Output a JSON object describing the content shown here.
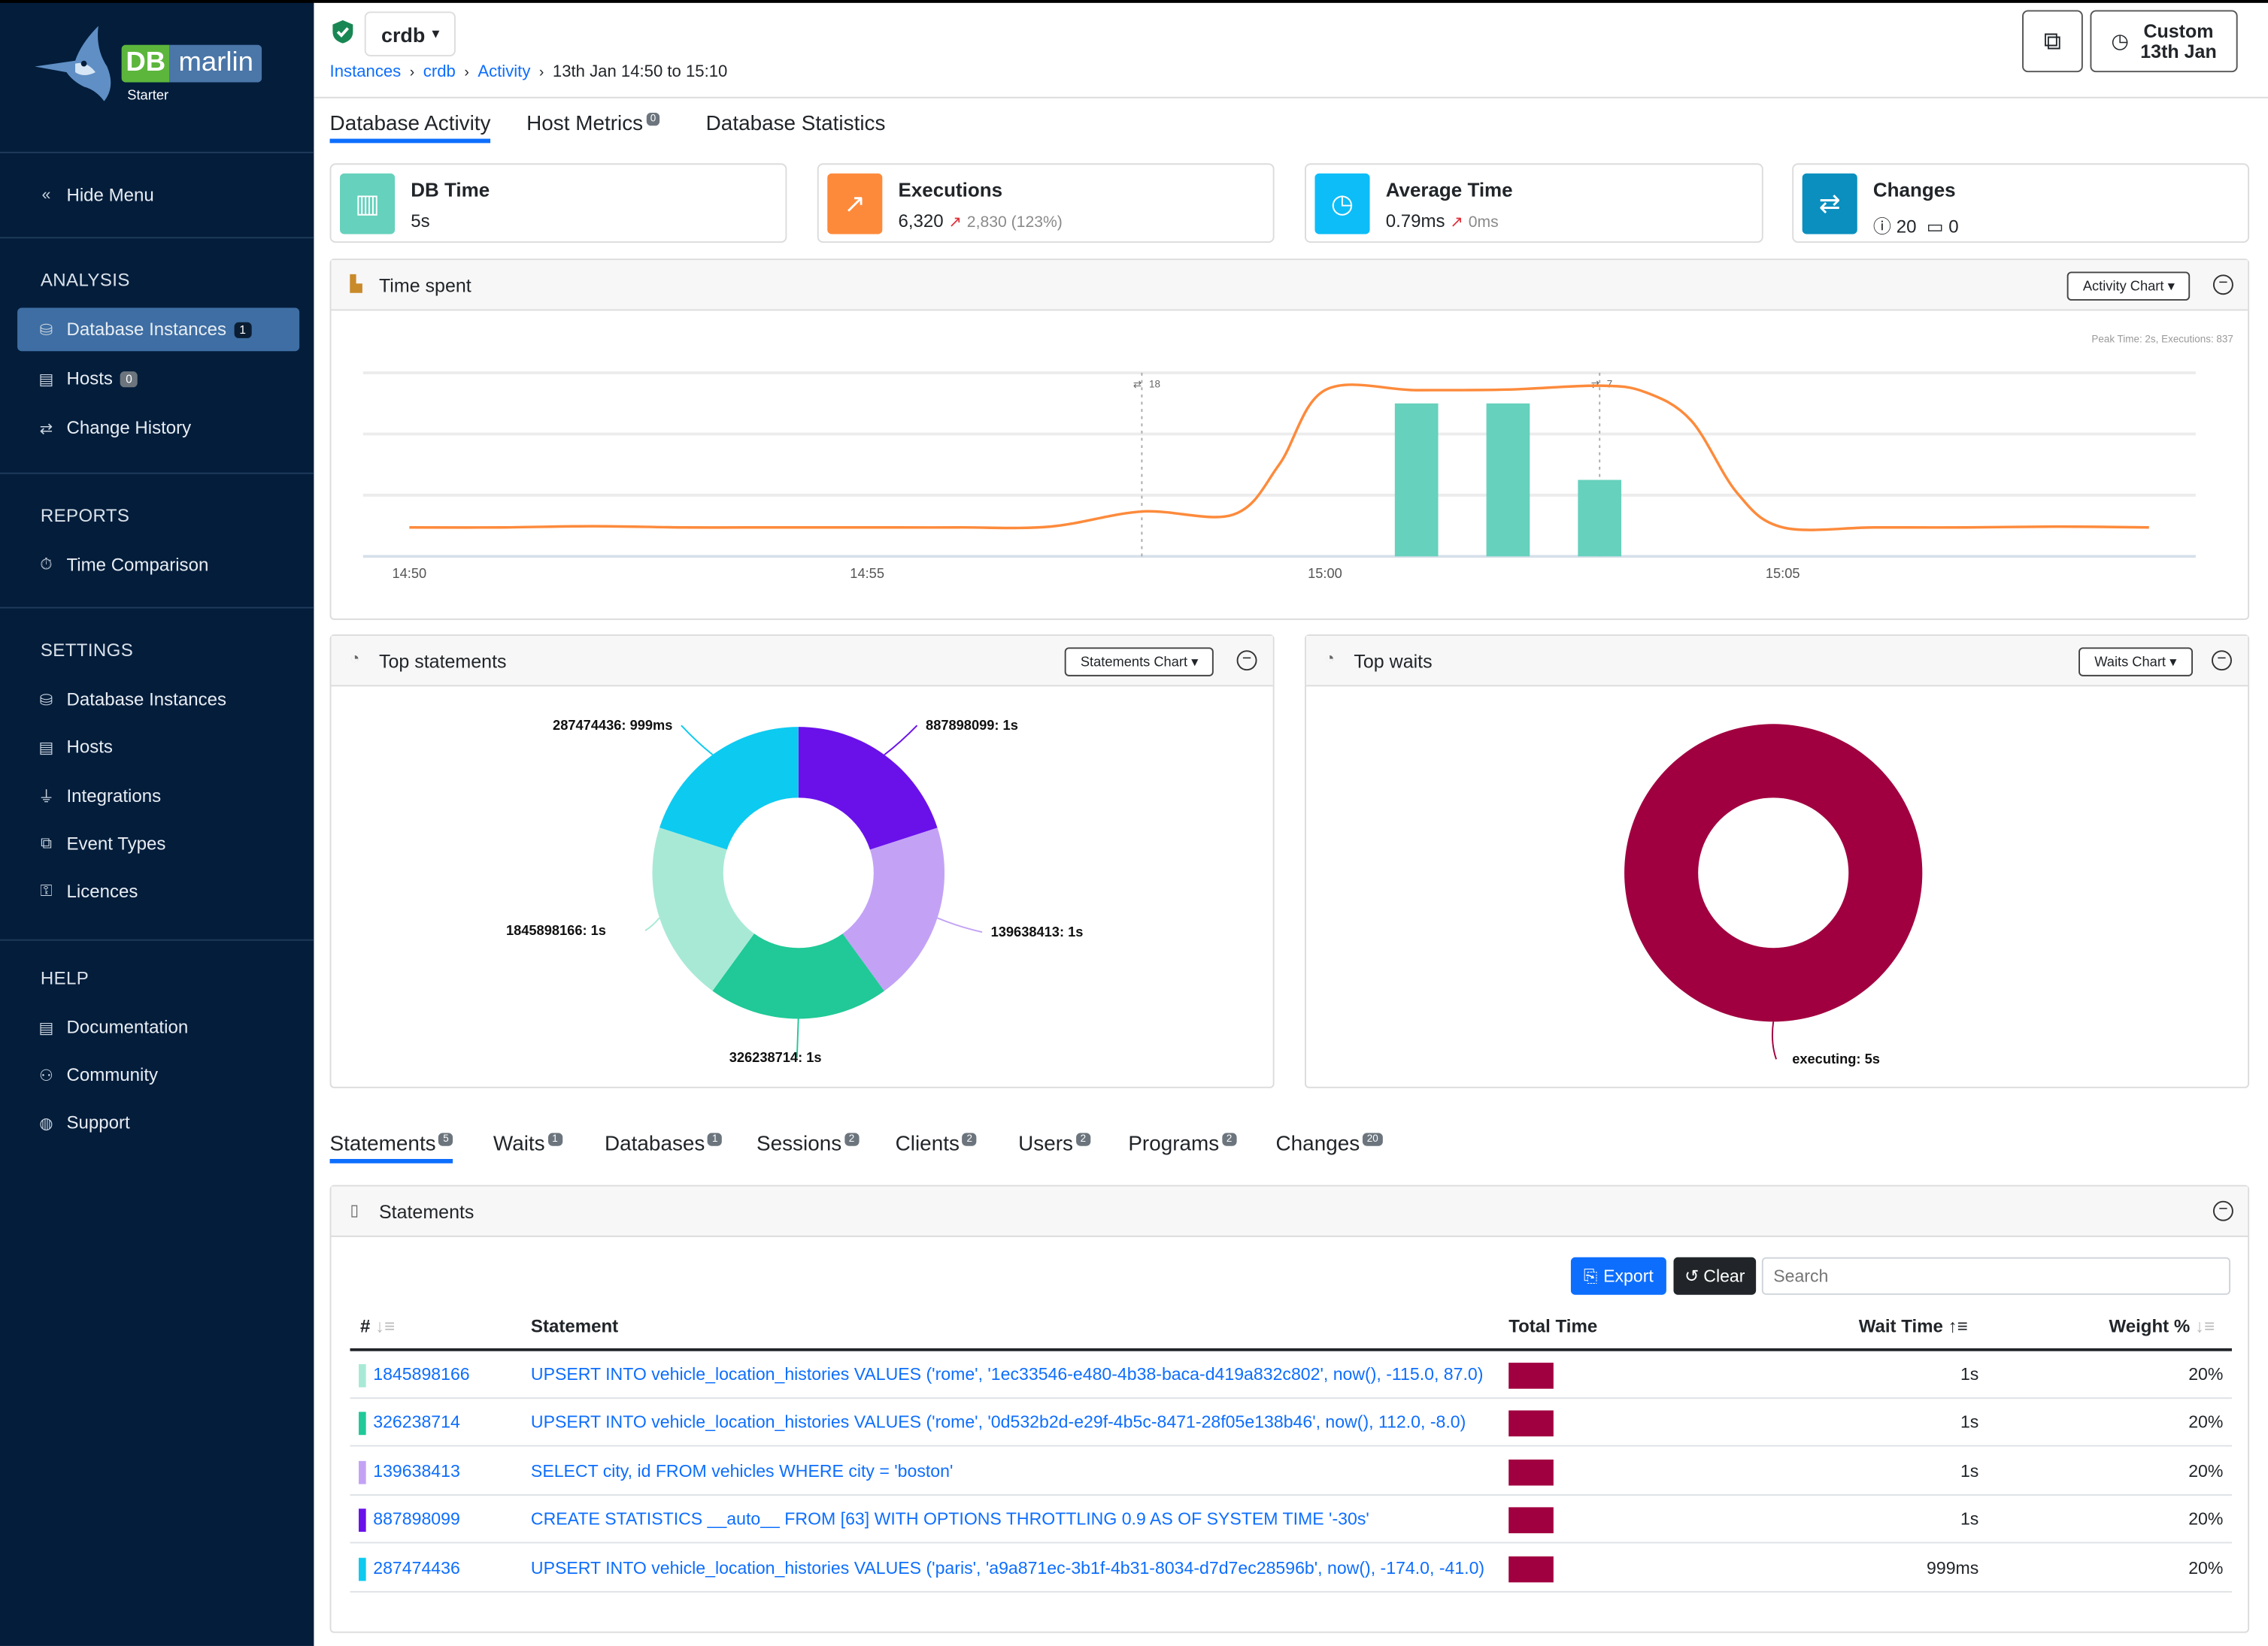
{
  "brand": {
    "logo_text_a": "DB",
    "logo_text_b": "marlin",
    "edition": "Starter"
  },
  "sidebar": {
    "hide_menu": "Hide Menu",
    "sections": [
      {
        "title": "ANALYSIS",
        "items": [
          {
            "label": "Database Instances",
            "badge": "1",
            "active": true
          },
          {
            "label": "Hosts",
            "badge": "0"
          },
          {
            "label": "Change History"
          }
        ]
      },
      {
        "title": "REPORTS",
        "items": [
          {
            "label": "Time Comparison"
          }
        ]
      },
      {
        "title": "SETTINGS",
        "items": [
          {
            "label": "Database Instances"
          },
          {
            "label": "Hosts"
          },
          {
            "label": "Integrations"
          },
          {
            "label": "Event Types"
          },
          {
            "label": "Licences"
          }
        ]
      },
      {
        "title": "HELP",
        "items": [
          {
            "label": "Documentation"
          },
          {
            "label": "Community"
          },
          {
            "label": "Support"
          }
        ]
      }
    ]
  },
  "header": {
    "instance": "crdb",
    "breadcrumb": [
      "Instances",
      "crdb",
      "Activity",
      "13th Jan 14:50 to 15:10"
    ],
    "time_button": {
      "line1": "Custom",
      "line2": "13th Jan"
    }
  },
  "main_tabs": [
    {
      "label": "Database Activity",
      "active": true
    },
    {
      "label": "Host Metrics",
      "badge": "0"
    },
    {
      "label": "Database Statistics"
    }
  ],
  "cards": [
    {
      "title": "DB Time",
      "value": "5s",
      "color": "#66d1bd"
    },
    {
      "title": "Executions",
      "value": "6,320",
      "delta": "2,830 (123%)",
      "color": "#fd8a3b"
    },
    {
      "title": "Average Time",
      "value": "0.79ms",
      "delta": "0ms",
      "color": "#0dbdf7"
    },
    {
      "title": "Changes",
      "info_count": "20",
      "calendar_count": "0",
      "color": "#0a8fbf"
    }
  ],
  "time_spent": {
    "title": "Time spent",
    "dropdown": "Activity Chart",
    "chart_data": {
      "type": "bar+line",
      "annotation": "Peak Time: 2s, Executions: 837",
      "x_ticks": [
        "14:50",
        "14:55",
        "15:00",
        "15:05"
      ],
      "x_range": [
        "14:49:30",
        "15:10:00"
      ],
      "line": {
        "color": "#fd8a3b",
        "ylim": [
          0,
          900
        ],
        "points": [
          [
            "14:50:00",
            142
          ],
          [
            "14:51:00",
            142
          ],
          [
            "14:52:00",
            148
          ],
          [
            "14:53:00",
            142
          ],
          [
            "14:54:00",
            142
          ],
          [
            "14:55:00",
            142
          ],
          [
            "14:56:00",
            142
          ],
          [
            "14:57:00",
            146
          ],
          [
            "14:58:00",
            220
          ],
          [
            "14:59:00",
            205
          ],
          [
            "14:59:30",
            450
          ],
          [
            "15:00:00",
            815
          ],
          [
            "15:01:00",
            815
          ],
          [
            "15:02:00",
            818
          ],
          [
            "15:03:00",
            837
          ],
          [
            "15:03:30",
            805
          ],
          [
            "15:04:00",
            666
          ],
          [
            "15:04:30",
            312
          ],
          [
            "15:05:00",
            142
          ],
          [
            "15:06:00",
            142
          ],
          [
            "15:07:00",
            142
          ],
          [
            "15:08:00",
            146
          ],
          [
            "15:09:00",
            142
          ]
        ]
      },
      "bars": {
        "color": "#66d1bd",
        "ylim": [
          0,
          2.4
        ],
        "points": [
          [
            "15:01:00",
            2
          ],
          [
            "15:02:00",
            2
          ],
          [
            "15:03:00",
            1
          ]
        ]
      },
      "markers": [
        {
          "x": "14:58:00",
          "label": "18"
        },
        {
          "x": "15:03:00",
          "label": "7"
        }
      ]
    }
  },
  "top_statements": {
    "title": "Top statements",
    "dropdown": "Statements Chart",
    "chart_data": {
      "type": "pie",
      "donut": true,
      "slices": [
        {
          "label": "887898099: 1s",
          "value": 1,
          "color": "#6a11ea"
        },
        {
          "label": "139638413: 1s",
          "value": 1,
          "color": "#c3a2f6"
        },
        {
          "label": "326238714: 1s",
          "value": 1,
          "color": "#20c997"
        },
        {
          "label": "1845898166: 1s",
          "value": 1,
          "color": "#a8e9d6"
        },
        {
          "label": "287474436: 999ms",
          "value": 0.999,
          "color": "#0dcaf0"
        }
      ]
    }
  },
  "top_waits": {
    "title": "Top waits",
    "dropdown": "Waits Chart",
    "chart_data": {
      "type": "pie",
      "donut": true,
      "slices": [
        {
          "label": "executing: 5s",
          "value": 5,
          "color": "#a10040"
        }
      ]
    }
  },
  "bottom_tabs": [
    {
      "label": "Statements",
      "badge": "5",
      "active": true
    },
    {
      "label": "Waits",
      "badge": "1"
    },
    {
      "label": "Databases",
      "badge": "1"
    },
    {
      "label": "Sessions",
      "badge": "2"
    },
    {
      "label": "Clients",
      "badge": "2"
    },
    {
      "label": "Users",
      "badge": "2"
    },
    {
      "label": "Programs",
      "badge": "2"
    },
    {
      "label": "Changes",
      "badge": "20"
    }
  ],
  "statements": {
    "title": "Statements",
    "export": "Export",
    "clear": "Clear",
    "search_placeholder": "Search",
    "columns": [
      "#",
      "Statement",
      "Total Time",
      "Wait Time",
      "Weight %"
    ],
    "rows": [
      {
        "id": "1845898166",
        "color": "#a8e9d6",
        "statement": "UPSERT INTO vehicle_location_histories VALUES ('rome', '1ec33546-e480-4b38-baca-d419a832c802', now(), -115.0, 87.0)",
        "wait": "1s",
        "weight": "20%"
      },
      {
        "id": "326238714",
        "color": "#20c997",
        "statement": "UPSERT INTO vehicle_location_histories VALUES ('rome', '0d532b2d-e29f-4b5c-8471-28f05e138b46', now(), 112.0, -8.0)",
        "wait": "1s",
        "weight": "20%"
      },
      {
        "id": "139638413",
        "color": "#c3a2f6",
        "statement": "SELECT city, id FROM vehicles WHERE city = 'boston'",
        "wait": "1s",
        "weight": "20%"
      },
      {
        "id": "887898099",
        "color": "#6a11ea",
        "statement": "CREATE STATISTICS __auto__ FROM [63] WITH OPTIONS THROTTLING 0.9 AS OF SYSTEM TIME '-30s'",
        "wait": "1s",
        "weight": "20%"
      },
      {
        "id": "287474436",
        "color": "#0dcaf0",
        "statement": "UPSERT INTO vehicle_location_histories VALUES ('paris', 'a9a871ec-3b1f-4b31-8034-d7d7ec28596b', now(), -174.0, -41.0)",
        "wait": "999ms",
        "weight": "20%"
      }
    ]
  }
}
